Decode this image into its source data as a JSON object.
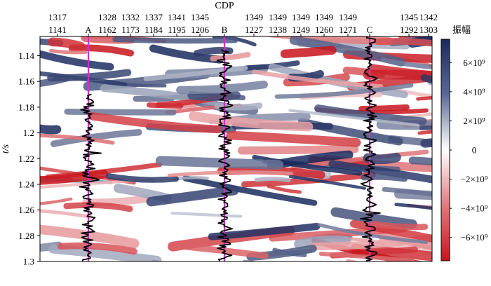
{
  "chart_data": {
    "type": "heatmap",
    "title": "",
    "xlabel": "CDP",
    "ylabel": "t/s",
    "ylim": [
      1.3,
      1.125
    ],
    "y_ticks": [
      "1.14",
      "1.16",
      "1.18",
      "1.2",
      "1.22",
      "1.24",
      "1.26",
      "1.28",
      "1.3"
    ],
    "x_tick_labels": [
      {
        "top": "1317",
        "bottom": "1141"
      },
      {
        "top": "",
        "bottom": "A"
      },
      {
        "top": "1328",
        "bottom": "1162"
      },
      {
        "top": "1332",
        "bottom": "1173"
      },
      {
        "top": "1337",
        "bottom": "1184"
      },
      {
        "top": "1341",
        "bottom": "1195"
      },
      {
        "top": "1345",
        "bottom": "1206"
      },
      {
        "top": "",
        "bottom": "B"
      },
      {
        "top": "1349",
        "bottom": "1227"
      },
      {
        "top": "1349",
        "bottom": "1238"
      },
      {
        "top": "1349",
        "bottom": "1249"
      },
      {
        "top": "1349",
        "bottom": "1260"
      },
      {
        "top": "1349",
        "bottom": "1271"
      },
      {
        "top": "",
        "bottom": "C"
      },
      {
        "top": "1345",
        "bottom": "1292"
      },
      {
        "top": "1342",
        "bottom": "1303"
      }
    ],
    "wells": [
      {
        "name": "A",
        "trace_top_t": 1.17
      },
      {
        "name": "B",
        "trace_top_t": 1.135
      },
      {
        "name": "C",
        "trace_top_t": 1.125
      }
    ],
    "colorbar": {
      "title": "振幅",
      "ticks": [
        "6×10⁹",
        "4×10⁹",
        "2×10⁹",
        "0",
        "−2×10⁹",
        "−4×10⁹",
        "−6×10⁹"
      ],
      "tick_values": [
        6000000000.0,
        4000000000.0,
        2000000000.0,
        0,
        -2000000000.0,
        -4000000000.0,
        -6000000000.0
      ],
      "range": [
        -7600000000.0,
        7600000000.0
      ],
      "max_color": "#1a2a5e",
      "min_color": "#c8141c",
      "zero_color": "#ffffff"
    },
    "grid": false
  },
  "colors": {
    "well_line": "#cc33cc",
    "trace_line": "#000000"
  }
}
